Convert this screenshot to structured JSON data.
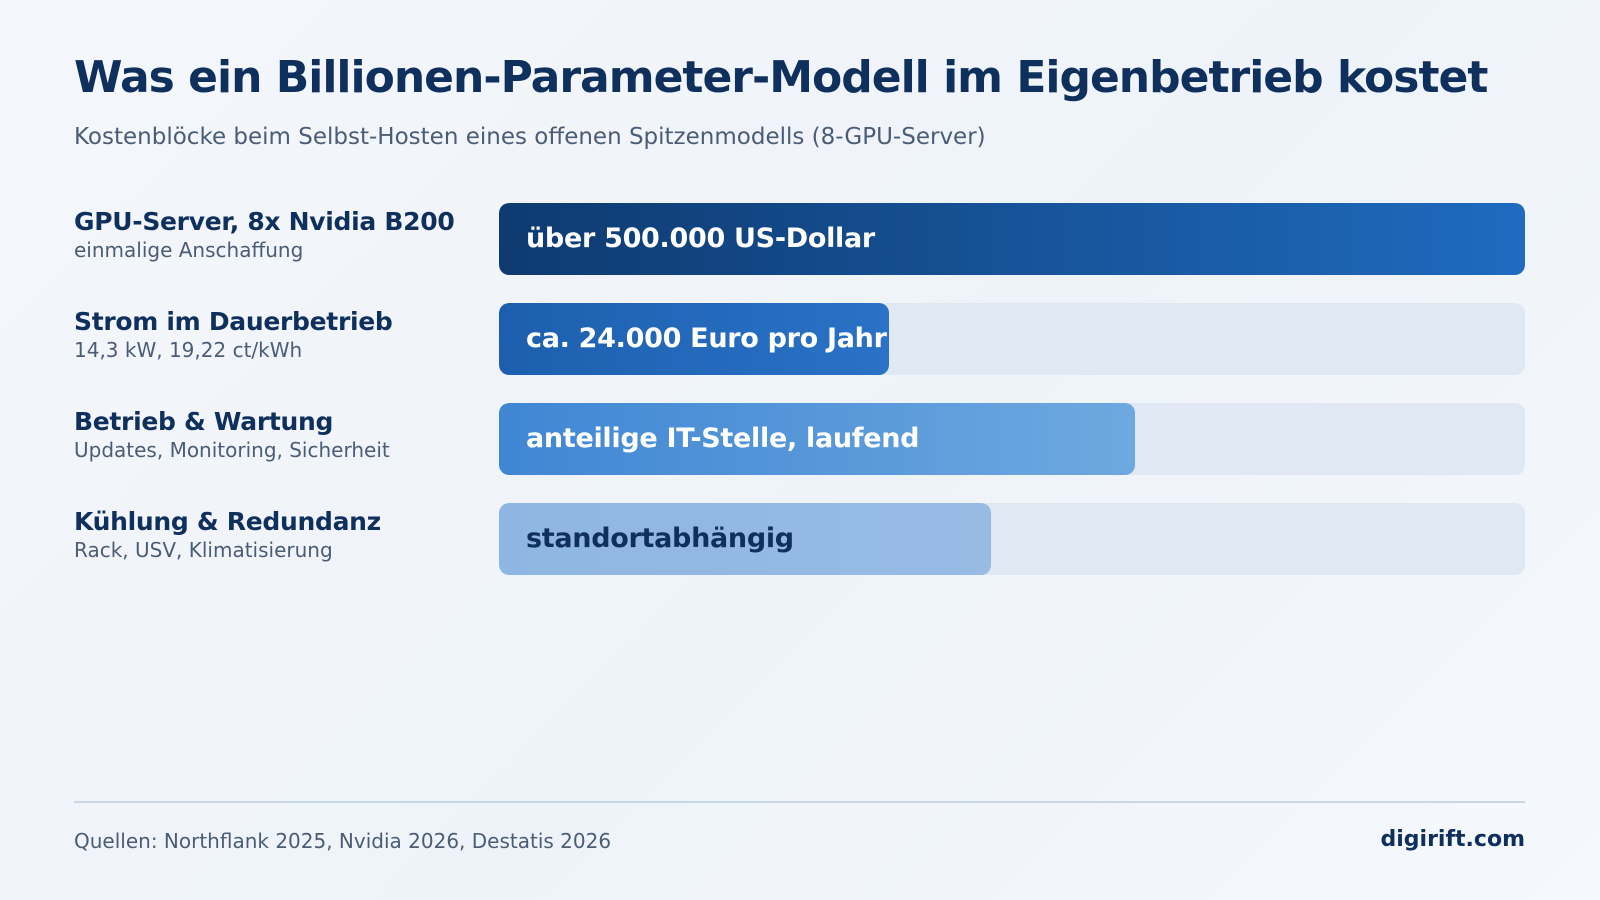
{
  "header": {
    "title": "Was ein Billionen-Parameter-Modell im Eigenbetrieb kostet",
    "subtitle": "Kostenblöcke beim Selbst-Hosten eines offenen Spitzenmodells (8-GPU-Server)"
  },
  "chart_data": {
    "type": "bar",
    "orientation": "horizontal",
    "title": "Was ein Billionen-Parameter-Modell im Eigenbetrieb kostet",
    "subtitle": "Kostenblöcke beim Selbst-Hosten eines offenen Spitzenmodells (8-GPU-Server)",
    "categories": [
      {
        "name": "GPU-Server, 8x Nvidia B200",
        "detail": "einmalige Anschaffung",
        "value_label": "über 500.000 US-Dollar",
        "fill_fraction": 1.0,
        "color": "#0e3a70",
        "color_end": "#1f6bbf",
        "text_color": "#ffffff"
      },
      {
        "name": "Strom im Dauerbetrieb",
        "detail": "14,3 kW, 19,22 ct/kWh",
        "value_label": "ca. 24.000 Euro pro Jahr",
        "fill_fraction": 0.38,
        "color": "#1d5fae",
        "color_end": "#2a72c6",
        "text_color": "#ffffff"
      },
      {
        "name": "Betrieb & Wartung",
        "detail": "Updates, Monitoring, Sicherheit",
        "value_label": "anteilige IT-Stelle, laufend",
        "fill_fraction": 0.62,
        "color": "#3f86d3",
        "color_end": "#6ea8e0",
        "text_color": "#ffffff"
      },
      {
        "name": "Kühlung & Redundanz",
        "detail": "Rack, USV, Klimatisierung",
        "value_label": "standortabhängig",
        "fill_fraction": 0.48,
        "color": "#8fb6e2",
        "color_end": "#97bbe3",
        "text_color": "#0f2f5c"
      }
    ],
    "track_color": "#dfe8f3",
    "legend": "none",
    "grid": false
  },
  "footer": {
    "source": "Quellen: Northflank 2025, Nvidia 2026, Destatis 2026",
    "brand": "digirift.com"
  }
}
